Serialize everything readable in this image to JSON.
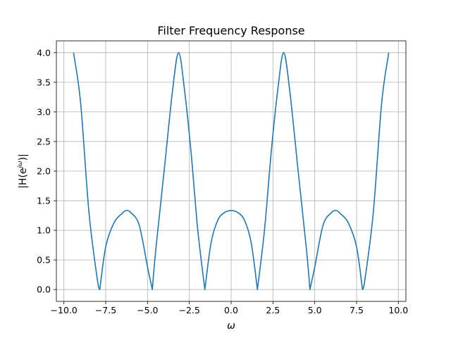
{
  "chart_data": {
    "type": "line",
    "title": "Filter Frequency Response",
    "xlabel": "ω",
    "ylabel_parts": {
      "prefix": "|H(e",
      "superscript": "jω",
      "suffix": ")|"
    },
    "xlim": [
      -10.45,
      10.45
    ],
    "ylim": [
      -0.2,
      4.2
    ],
    "xticks": [
      -10.0,
      -7.5,
      -5.0,
      -2.5,
      0.0,
      2.5,
      5.0,
      7.5,
      10.0
    ],
    "xtick_labels": [
      "−10.0",
      "−7.5",
      "−5.0",
      "−2.5",
      "0.0",
      "2.5",
      "5.0",
      "7.5",
      "10.0"
    ],
    "yticks": [
      0.0,
      0.5,
      1.0,
      1.5,
      2.0,
      2.5,
      3.0,
      3.5,
      4.0
    ],
    "ytick_labels": [
      "0.0",
      "0.5",
      "1.0",
      "1.5",
      "2.0",
      "2.5",
      "3.0",
      "3.5",
      "4.0"
    ],
    "grid": true,
    "line_color": "#1f77b4",
    "series": [
      {
        "x": [
          -9.425,
          -9.0,
          -8.5,
          -8.0,
          -7.854,
          -7.5,
          -7.0,
          -6.5,
          -6.283,
          -6.0,
          -5.5,
          -5.0,
          -4.712,
          -4.5,
          -4.0,
          -3.5,
          -3.142,
          -2.8,
          -2.4,
          -2.0,
          -1.571,
          -1.2,
          -0.8,
          -0.4,
          0.0,
          0.4,
          0.8,
          1.2,
          1.571,
          2.0,
          2.4,
          2.8,
          3.142,
          3.5,
          4.0,
          4.5,
          4.712,
          5.0,
          5.5,
          6.0,
          6.283,
          6.5,
          7.0,
          7.5,
          7.854,
          8.0,
          8.5,
          9.0,
          9.425
        ],
        "y": [
          4.0,
          3.15,
          1.3,
          0.17,
          0.0,
          0.72,
          1.13,
          1.29,
          1.333,
          1.3,
          1.09,
          0.38,
          0.0,
          0.69,
          2.02,
          3.37,
          4.0,
          3.4,
          2.33,
          1.02,
          0.0,
          0.79,
          1.17,
          1.3,
          1.333,
          1.3,
          1.17,
          0.79,
          0.0,
          1.02,
          2.33,
          3.4,
          4.0,
          3.37,
          2.02,
          0.69,
          0.0,
          0.38,
          1.09,
          1.3,
          1.333,
          1.29,
          1.13,
          0.72,
          0.0,
          0.17,
          1.3,
          3.15,
          4.0
        ]
      }
    ]
  }
}
